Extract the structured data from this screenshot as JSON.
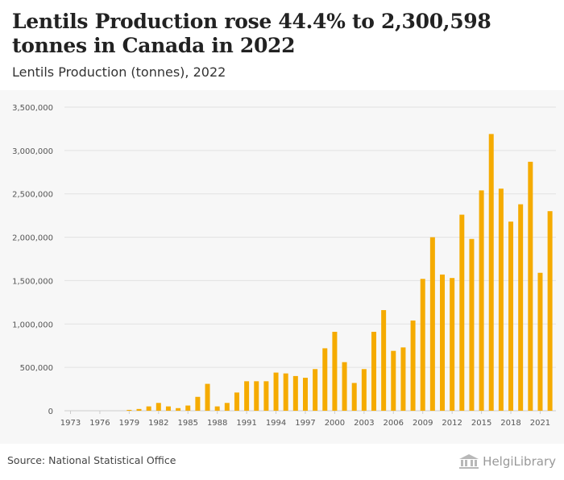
{
  "header": {
    "title": "Lentils Production rose 44.4% to 2,300,598 tonnes in Canada in 2022",
    "subtitle": "Lentils Production (tonnes), 2022"
  },
  "footer": {
    "source": "Source: National Statistical Office",
    "brand": "HelgiLibrary"
  },
  "colors": {
    "bar": "#f5ab00",
    "grid": "#e2e2e2",
    "axis_text": "#555555",
    "plot_bg": "#f7f7f7"
  },
  "chart_data": {
    "type": "bar",
    "title": "Lentils Production rose 44.4% to 2,300,598 tonnes in Canada in 2022",
    "subtitle": "Lentils Production (tonnes), 2022",
    "xlabel": "",
    "ylabel": "",
    "categories": [
      "1973",
      "1974",
      "1975",
      "1976",
      "1977",
      "1978",
      "1979",
      "1980",
      "1981",
      "1982",
      "1983",
      "1984",
      "1985",
      "1986",
      "1987",
      "1988",
      "1989",
      "1990",
      "1991",
      "1992",
      "1993",
      "1994",
      "1995",
      "1996",
      "1997",
      "1998",
      "1999",
      "2000",
      "2001",
      "2002",
      "2003",
      "2004",
      "2005",
      "2006",
      "2007",
      "2008",
      "2009",
      "2010",
      "2011",
      "2012",
      "2013",
      "2014",
      "2015",
      "2016",
      "2017",
      "2018",
      "2019",
      "2020",
      "2021",
      "2022"
    ],
    "x_tick_labels": [
      "1973",
      "1976",
      "1979",
      "1982",
      "1985",
      "1988",
      "1991",
      "1994",
      "1997",
      "2000",
      "2003",
      "2006",
      "2009",
      "2012",
      "2015",
      "2018",
      "2021"
    ],
    "values": [
      0,
      0,
      0,
      0,
      0,
      0,
      10000,
      20000,
      50000,
      90000,
      50000,
      30000,
      60000,
      160000,
      310000,
      50000,
      90000,
      210000,
      340000,
      340000,
      340000,
      440000,
      430000,
      400000,
      380000,
      480000,
      720000,
      910000,
      560000,
      320000,
      480000,
      910000,
      1160000,
      690000,
      730000,
      1040000,
      1520000,
      2000000,
      1570000,
      1530000,
      2260000,
      1980000,
      2540000,
      3190000,
      2560000,
      2180000,
      2380000,
      2870000,
      1590000,
      2300598
    ],
    "ylim": [
      0,
      3500000
    ],
    "y_ticks": [
      0,
      500000,
      1000000,
      1500000,
      2000000,
      2500000,
      3000000,
      3500000
    ],
    "y_tick_labels": [
      "0",
      "500,000",
      "1,000,000",
      "1,500,000",
      "2,000,000",
      "2,500,000",
      "3,000,000",
      "3,500,000"
    ],
    "grid": true,
    "legend": "none"
  }
}
